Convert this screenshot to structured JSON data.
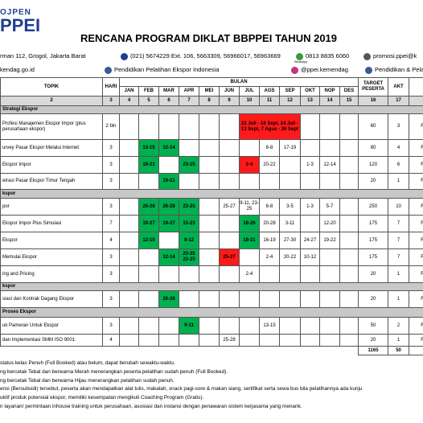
{
  "header": {
    "logo_top": "OJPEN",
    "logo_main": "PPEI",
    "title": "RENCANA PROGRAM DIKLAT BBPPEI TAHUN 2019",
    "address": "rman 112, Grogol, Jakarta Barat",
    "phone": "(021) 5674229 Ext. 106, 5663309, 56966017, 56963669",
    "whatsapp": "0813 8835 6060",
    "whatsapp_caption": "WhatsApp",
    "email": "promosi.ppei@k",
    "website": "kendag.go.id",
    "facebook": "Pendidikan Pelatihan Ekspor Indonesia",
    "instagram": "@ppei.kemendag",
    "facebook2": "Pendidikan & Pelat"
  },
  "table": {
    "columns": {
      "topik": "TOPIK",
      "hari": "HARI",
      "bulan": "BULAN",
      "months": [
        "JAN",
        "FEB",
        "MAR",
        "APR",
        "MEI",
        "JUN",
        "JUL",
        "AGS",
        "SEP",
        "OKT",
        "NOP",
        "DES"
      ],
      "target": "TARGET PESERTA",
      "akt": "AKT",
      "last": "I"
    },
    "numbers": [
      "2",
      "3",
      "4",
      "5",
      "6",
      "7",
      "8",
      "9",
      "10",
      "11",
      "12",
      "13",
      "14",
      "15",
      "16",
      "17",
      "1"
    ],
    "rows": [
      {
        "section": "Strategi Ekspor"
      },
      {
        "topik": "Profesi Manajemen Ekspor Impor (plus perusahaan ekspor)",
        "hari": "2 bln",
        "months": [
          null,
          null,
          null,
          null,
          null,
          null,
          {
            "text": "22 Juli - 10 Sept, 24 Juli - 13 Sept, 7 Agus - 26 Sept",
            "color": "#ff1a1a"
          },
          null,
          null,
          null,
          null,
          null
        ],
        "target": "60",
        "akt": "3",
        "last": "Rp"
      },
      {
        "topik": "urvey Pasar Ekspor Melalui Internet",
        "hari": "3",
        "months": [
          null,
          {
            "text": "13-15",
            "color": "#00b050"
          },
          {
            "text": "12-14",
            "color": "#00b050"
          },
          null,
          null,
          null,
          null,
          {
            "text": "6-8"
          },
          {
            "text": "17-19"
          },
          null,
          null,
          null
        ],
        "target": "80",
        "akt": "4",
        "last": "Rp"
      },
      {
        "topik": "Ekspor Impor",
        "hari": "3",
        "months": [
          null,
          {
            "text": "19-21",
            "color": "#00b050"
          },
          null,
          {
            "text": "23-25",
            "color": "#00b050"
          },
          null,
          null,
          {
            "text": "2-4",
            "color": "#ff1a1a"
          },
          {
            "text": "20-22"
          },
          null,
          {
            "text": "1-3"
          },
          {
            "text": "12-14"
          },
          null
        ],
        "target": "120",
        "akt": "6",
        "last": "Rp"
      },
      {
        "topik": "etrasi Pasar Ekspor Timur Tengah",
        "hari": "3",
        "months": [
          null,
          null,
          {
            "text": "19-21",
            "color": "#00b050"
          },
          null,
          null,
          null,
          null,
          null,
          null,
          null,
          null,
          null
        ],
        "target": "20",
        "akt": "1",
        "last": "Rp"
      },
      {
        "section": "kspor"
      },
      {
        "topik": "por",
        "hari": "3",
        "months": [
          null,
          {
            "text": "26-28",
            "color": "#00b050"
          },
          {
            "text": "26-28",
            "color": "#00b050"
          },
          {
            "text": "23-25",
            "color": "#00b050"
          },
          null,
          {
            "text": "25-27"
          },
          {
            "text": "9-11, 23-25"
          },
          {
            "text": "6-8"
          },
          {
            "text": "3-5"
          },
          {
            "text": "1-3"
          },
          {
            "text": "5-7"
          },
          null
        ],
        "target": "250",
        "akt": "10",
        "last": "Rp"
      },
      {
        "topik": "Ekspor Impor Plus Simulasi",
        "hari": "7",
        "months": [
          null,
          {
            "text": "19-27",
            "color": "#00b050"
          },
          {
            "text": "19-27",
            "color": "#00b050"
          },
          {
            "text": "15-23",
            "color": "#00b050"
          },
          null,
          null,
          {
            "text": "18-26",
            "color": "#00b050"
          },
          {
            "text": "20-28"
          },
          {
            "text": "3-11"
          },
          null,
          {
            "text": "12-20"
          },
          null
        ],
        "target": "175",
        "akt": "7",
        "last": "Rp"
      },
      {
        "topik": "Ekspor",
        "hari": "4",
        "months": [
          null,
          {
            "text": "12-15",
            "color": "#00b050"
          },
          null,
          {
            "text": "9-12",
            "color": "#00b050"
          },
          null,
          null,
          {
            "text": "18-21",
            "color": "#00b050"
          },
          {
            "text": "16-19"
          },
          {
            "text": "27-30"
          },
          {
            "text": "24-27"
          },
          {
            "text": "19-22"
          },
          null
        ],
        "target": "175",
        "akt": "7",
        "last": "Rp"
      },
      {
        "topik": "Memulai Ekspor",
        "hari": "3",
        "months": [
          null,
          null,
          {
            "text": "12-14",
            "color": "#00b050"
          },
          {
            "text": "23-25 23-25",
            "color": "#00b050"
          },
          null,
          {
            "text": "25-27",
            "color": "#ff1a1a"
          },
          null,
          {
            "text": "2-4"
          },
          {
            "text": "20-22"
          },
          {
            "text": "10-12"
          },
          null,
          null
        ],
        "target": "175",
        "akt": "7",
        "last": "Rp"
      },
      {
        "topik": "ing and Pricing",
        "hari": "3",
        "months": [
          null,
          null,
          null,
          null,
          null,
          null,
          {
            "text": "2-4"
          },
          null,
          null,
          null,
          null,
          null
        ],
        "target": "20",
        "akt": "1",
        "last": "Rp"
      },
      {
        "section": "kspor"
      },
      {
        "topik": "siasi dan Kontrak Dagang Ekspor",
        "hari": "3",
        "months": [
          null,
          null,
          {
            "text": "26-28",
            "color": "#00b050"
          },
          null,
          null,
          null,
          null,
          null,
          null,
          null,
          null,
          null
        ],
        "target": "20",
        "akt": "1",
        "last": "Rp"
      },
      {
        "section": "Proses Ekspor"
      },
      {
        "topik": "uk Pameran Untuk Ekspor",
        "hari": "3",
        "months": [
          null,
          null,
          null,
          {
            "text": "9-11",
            "color": "#00b050"
          },
          null,
          null,
          null,
          {
            "text": "13-15"
          },
          null,
          null,
          null,
          null
        ],
        "target": "50",
        "akt": "2",
        "last": "Rp"
      },
      {
        "topik": "dan Implementasi SMM ISO 9001:",
        "hari": "4",
        "months": [
          null,
          null,
          null,
          null,
          null,
          {
            "text": "25-28"
          },
          null,
          null,
          null,
          null,
          null,
          null
        ],
        "target": "20",
        "akt": "1",
        "last": "Rp"
      }
    ],
    "total": {
      "target": "1165",
      "akt": "50"
    }
  },
  "notes": [
    "status kelas Penuh (Full Booked) atau belum, dapat berubah sewaktu-waktu.",
    "ng bercetak Tebal dan berwarna Merah menerangkan peserta pelatihan sudah penuh (Full Booked).",
    "ng bercetak Tebal dan berwarna Hijau menerangkan pelatihan sudah penuh.",
    "ensi (Bersubsidi) tersebut, peserta akan mendapatkan alat tulis, makalah, snack pagi-sore & makan siang, sertifikat serta sewa bus bila pelatihannya ada kunju",
    "uktif produk potensial ekspor, memiliki kesempatan mengikuti Coaching Program (Gratis).",
    "n layanan/ permintaan inhouse training untuk perusahaan, asosiasi dan instansi dengan penawaran sistem kerjasama yang menarik."
  ]
}
